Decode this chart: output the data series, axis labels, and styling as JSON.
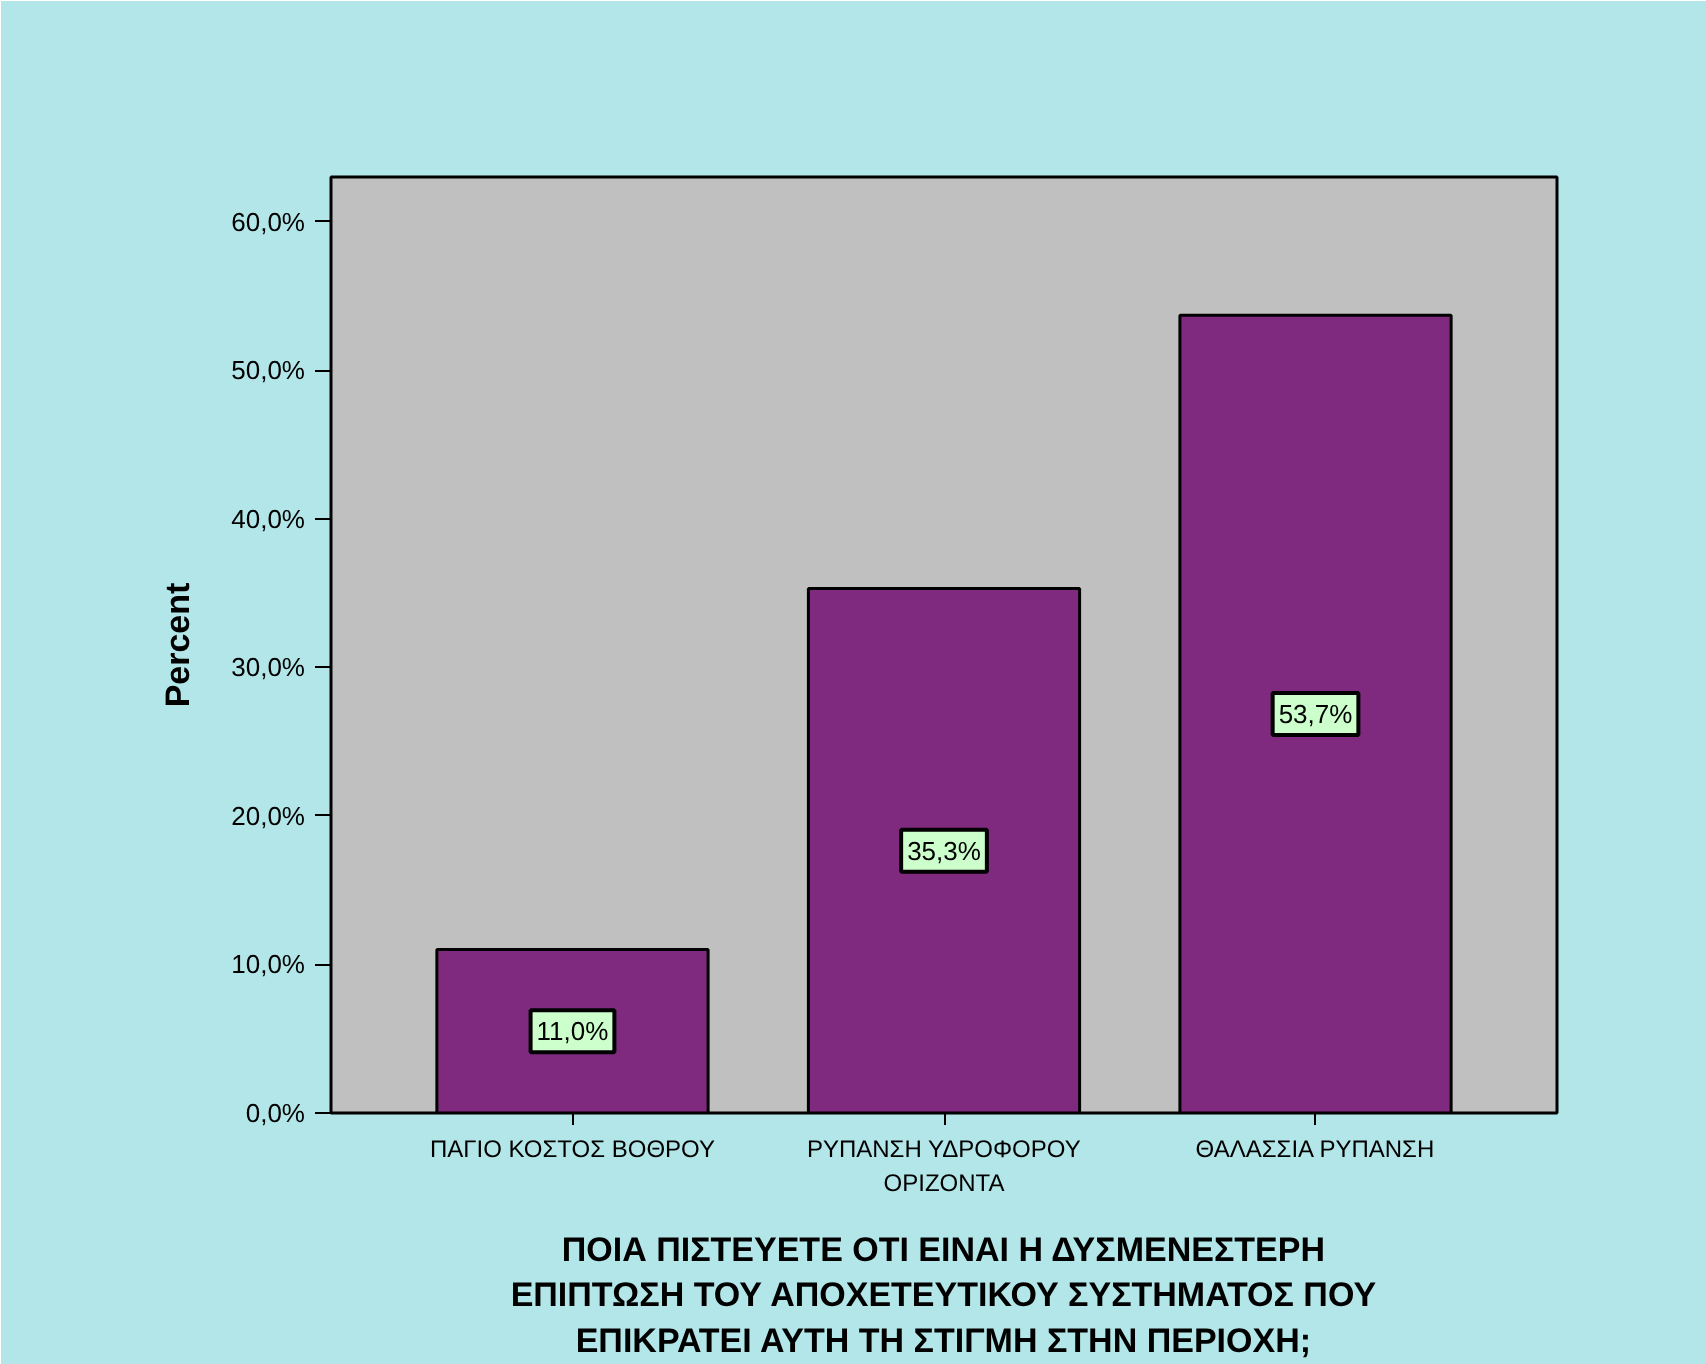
{
  "chart_data": {
    "type": "bar",
    "categories": [
      "ΠΑΓΙΟ ΚΟΣΤΟΣ ΒΟΘΡΟΥ",
      "ΡΥΠΑΝΣΗ ΥΔΡΟΦΟΡΟΥ ΟΡΙΖΟΝΤΑ",
      "ΘΑΛΑΣΣΙΑ ΡΥΠΑΝΣΗ"
    ],
    "values": [
      11.0,
      35.3,
      53.7
    ],
    "color": "#7f2a7f",
    "value_labels": [
      "11,0%",
      "35,3%",
      "53,7%"
    ],
    "xlabel": "ΠΟΙΑ ΠΙΣΤΕΥΕΤΕ ΟΤΙ ΕΙΝΑΙ Η ΔΥΣΜΕΝΕΣΤΕΡΗ ΕΠΙΠΤΩΣΗ ΤΟΥ ΑΠΟΧΕΤΕΥΤΙΚΟΥ ΣΥΣΤΗΜΑΤΟΣ ΠΟΥ ΕΠΙΚΡΑΤΕΙ ΑΥΤΗ ΤΗ ΣΤΙΓΜΗ ΣΤΗΝ ΠΕΡΙΟΧΗ;",
    "ylabel": "Percent",
    "ylim": [
      0,
      63
    ],
    "yticks": [
      {
        "value": 0,
        "label": "0,0%"
      },
      {
        "value": 10,
        "label": "10,0%"
      },
      {
        "value": 20,
        "label": "20,0%"
      },
      {
        "value": 30,
        "label": "30,0%"
      },
      {
        "value": 40,
        "label": "40,0%"
      },
      {
        "value": 50,
        "label": "50,0%"
      },
      {
        "value": 60,
        "label": "60,0%"
      }
    ]
  }
}
